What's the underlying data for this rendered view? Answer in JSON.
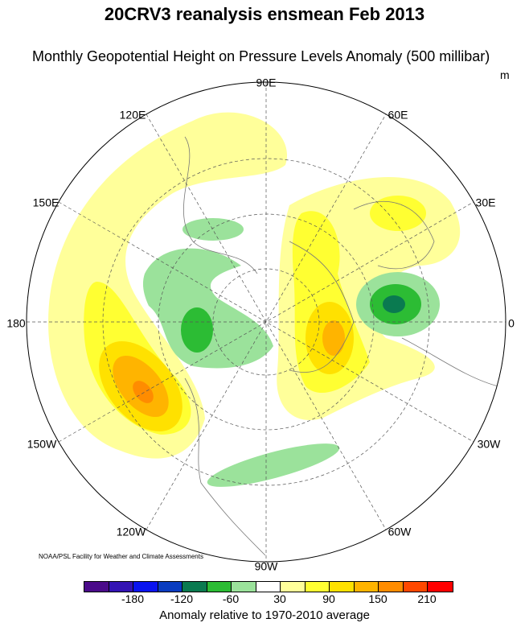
{
  "title": "20CRV3 reanalysis ensmean Feb 2013",
  "subtitle": "Monthly Geopotential Height on Pressure Levels Anomaly (500 millibar)",
  "units": "m",
  "longitude_labels": [
    "90E",
    "60E",
    "30E",
    "0",
    "30W",
    "60W",
    "90W",
    "120W",
    "150W",
    "180",
    "150E",
    "120E"
  ],
  "credit": "NOAA/PSL Facility for Weather and Climate Assessments",
  "colorbar": {
    "colors": [
      "#4b0b8a",
      "#3414b4",
      "#0a14f0",
      "#0a3cc0",
      "#0a7a50",
      "#2cbc34",
      "#9be29b",
      "#ffffff",
      "#ffff9a",
      "#ffff32",
      "#ffe100",
      "#ffb400",
      "#ff8c00",
      "#ff4800",
      "#ff0000"
    ],
    "boundaries": [
      -210,
      -180,
      -150,
      -120,
      -90,
      -60,
      -30,
      30,
      60,
      90,
      120,
      150,
      180,
      210
    ],
    "tick_labels": [
      "-180",
      "-120",
      "-60",
      "30",
      "90",
      "150",
      "210"
    ],
    "title": "Anomaly relative to 1970-2010 average"
  }
}
